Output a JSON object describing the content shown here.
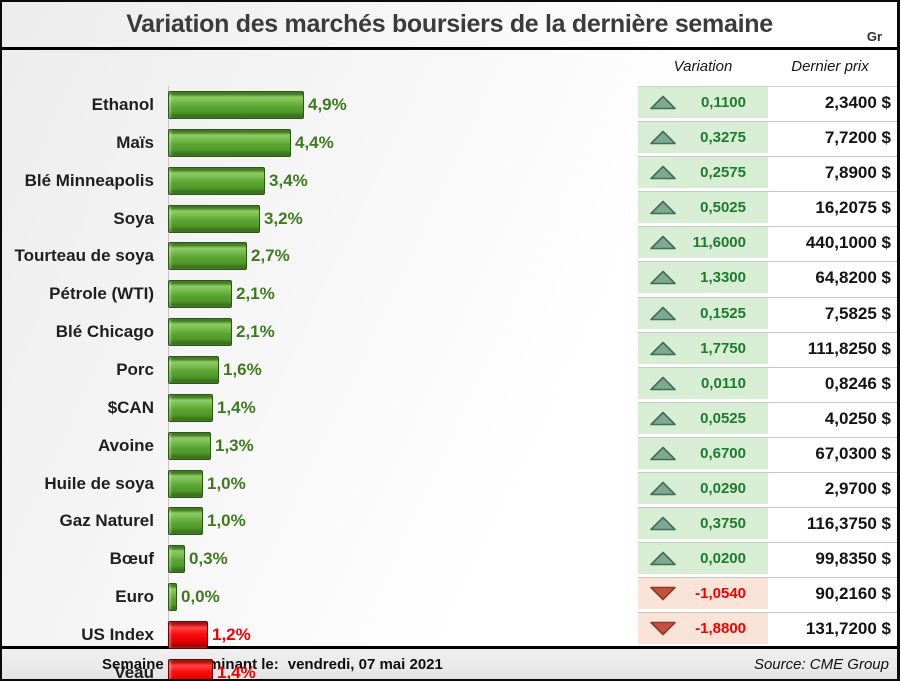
{
  "header": {
    "title": "Variation des marchés boursiers de la dernière semaine",
    "corner_label": "Gr"
  },
  "table_header": {
    "variation": "Variation",
    "dernier_prix": "Dernier prix"
  },
  "chart_data": {
    "type": "bar",
    "orientation": "horizontal",
    "title": "Variation des marchés boursiers de la dernière semaine",
    "unit": "%",
    "categories": [
      "Ethanol",
      "Maïs",
      "Blé Minneapolis",
      "Soya",
      "Tourteau de soya",
      "Pétrole (WTI)",
      "Blé Chicago",
      "Porc",
      "$CAN",
      "Avoine",
      "Huile de soya",
      "Gaz Naturel",
      "Bœuf",
      "Euro",
      "US Index",
      "Veau"
    ],
    "values": [
      4.9,
      4.4,
      3.4,
      3.2,
      2.7,
      2.1,
      2.1,
      1.6,
      1.4,
      1.3,
      1.0,
      1.0,
      0.3,
      0.0,
      -1.2,
      -1.4
    ],
    "bar_labels": [
      "4,9%",
      "4,4%",
      "3,4%",
      "3,2%",
      "2,7%",
      "2,1%",
      "2,1%",
      "1,6%",
      "1,4%",
      "1,3%",
      "1,0%",
      "1,0%",
      "0,3%",
      "0,0%",
      "1,2%",
      "1,4%"
    ],
    "positive_color": "#5aa531",
    "negative_color": "#f40000",
    "zero_axis": true,
    "legend": false,
    "grid": false
  },
  "table": {
    "rows": [
      {
        "direction": "up",
        "variation": "0,1100",
        "price": "2,3400 $"
      },
      {
        "direction": "up",
        "variation": "0,3275",
        "price": "7,7200 $"
      },
      {
        "direction": "up",
        "variation": "0,2575",
        "price": "7,8900 $"
      },
      {
        "direction": "up",
        "variation": "0,5025",
        "price": "16,2075 $"
      },
      {
        "direction": "up",
        "variation": "11,6000",
        "price": "440,1000 $"
      },
      {
        "direction": "up",
        "variation": "1,3300",
        "price": "64,8200 $"
      },
      {
        "direction": "up",
        "variation": "0,1525",
        "price": "7,5825 $"
      },
      {
        "direction": "up",
        "variation": "1,7750",
        "price": "111,8250 $"
      },
      {
        "direction": "up",
        "variation": "0,0110",
        "price": "0,8246 $"
      },
      {
        "direction": "up",
        "variation": "0,0525",
        "price": "4,0250 $"
      },
      {
        "direction": "up",
        "variation": "0,6700",
        "price": "67,0300 $"
      },
      {
        "direction": "up",
        "variation": "0,0290",
        "price": "2,9700 $"
      },
      {
        "direction": "up",
        "variation": "0,3750",
        "price": "116,3750 $"
      },
      {
        "direction": "up",
        "variation": "0,0200",
        "price": "99,8350 $"
      },
      {
        "direction": "down",
        "variation": "-1,0540",
        "price": "90,2160 $"
      },
      {
        "direction": "down",
        "variation": "-1,8800",
        "price": "131,7200 $"
      }
    ],
    "up_triangle_fill": "#7fa98e",
    "up_triangle_stroke": "#3f6d58",
    "down_triangle_fill": "#c35240",
    "down_triangle_stroke": "#8e3a2b",
    "positive_bg": "#d7edd4",
    "negative_bg": "#fae3d7"
  },
  "footer": {
    "week_label": "Semaine se terminant le:",
    "week_date": "vendredi, 07 mai 2021",
    "source": "Source: CME Group"
  }
}
